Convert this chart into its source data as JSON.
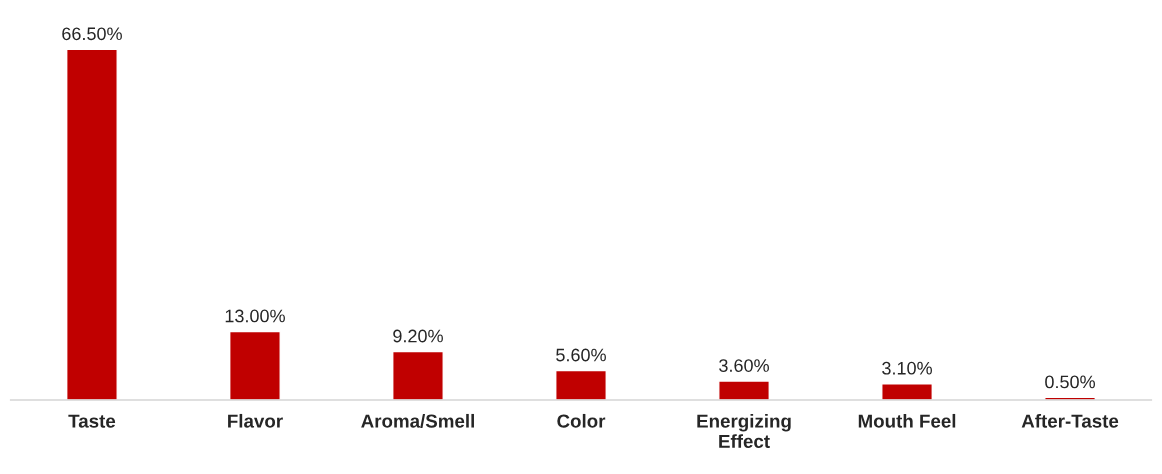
{
  "chart_data": {
    "type": "bar",
    "categories": [
      "Taste",
      "Flavor",
      "Aroma/Smell",
      "Color",
      "Energizing\nEffect",
      "Mouth Feel",
      "After-Taste"
    ],
    "values": [
      66.5,
      13.0,
      9.2,
      5.6,
      3.6,
      3.1,
      0.5
    ],
    "value_labels": [
      "66.50%",
      "13.00%",
      "9.20%",
      "5.60%",
      "3.60%",
      "3.10%",
      "0.50%"
    ],
    "color": "#c00000",
    "grid": false,
    "legend": false
  }
}
